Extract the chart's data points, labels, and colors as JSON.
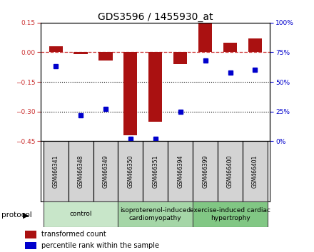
{
  "title": "GDS3596 / 1455930_at",
  "samples": [
    "GSM466341",
    "GSM466348",
    "GSM466349",
    "GSM466350",
    "GSM466351",
    "GSM466394",
    "GSM466399",
    "GSM466400",
    "GSM466401"
  ],
  "red_values": [
    0.03,
    -0.01,
    -0.04,
    -0.42,
    -0.35,
    -0.06,
    0.15,
    0.05,
    0.07
  ],
  "blue_values_pct": [
    63,
    22,
    27,
    2,
    2,
    25,
    68,
    58,
    60
  ],
  "ylim_left": [
    -0.45,
    0.15
  ],
  "ylim_right": [
    0,
    100
  ],
  "yticks_left": [
    0.15,
    0,
    -0.15,
    -0.3,
    -0.45
  ],
  "yticks_right": [
    100,
    75,
    50,
    25,
    0
  ],
  "groups": [
    {
      "label": "control",
      "color": "#c8e6c9",
      "start": 0,
      "end": 3
    },
    {
      "label": "isoproterenol-induced\ncardiomyopathy",
      "color": "#a5d6a7",
      "start": 3,
      "end": 6
    },
    {
      "label": "exercise-induced cardiac\nhypertrophy",
      "color": "#81c784",
      "start": 6,
      "end": 9
    }
  ],
  "bar_color": "#aa1111",
  "dot_color": "#0000cc",
  "dash_color": "#cc3333",
  "bar_width": 0.55,
  "title_fontsize": 10,
  "tick_fontsize": 6.5,
  "sample_fontsize": 5.5,
  "group_fontsize": 6.5,
  "legend_fontsize": 7
}
